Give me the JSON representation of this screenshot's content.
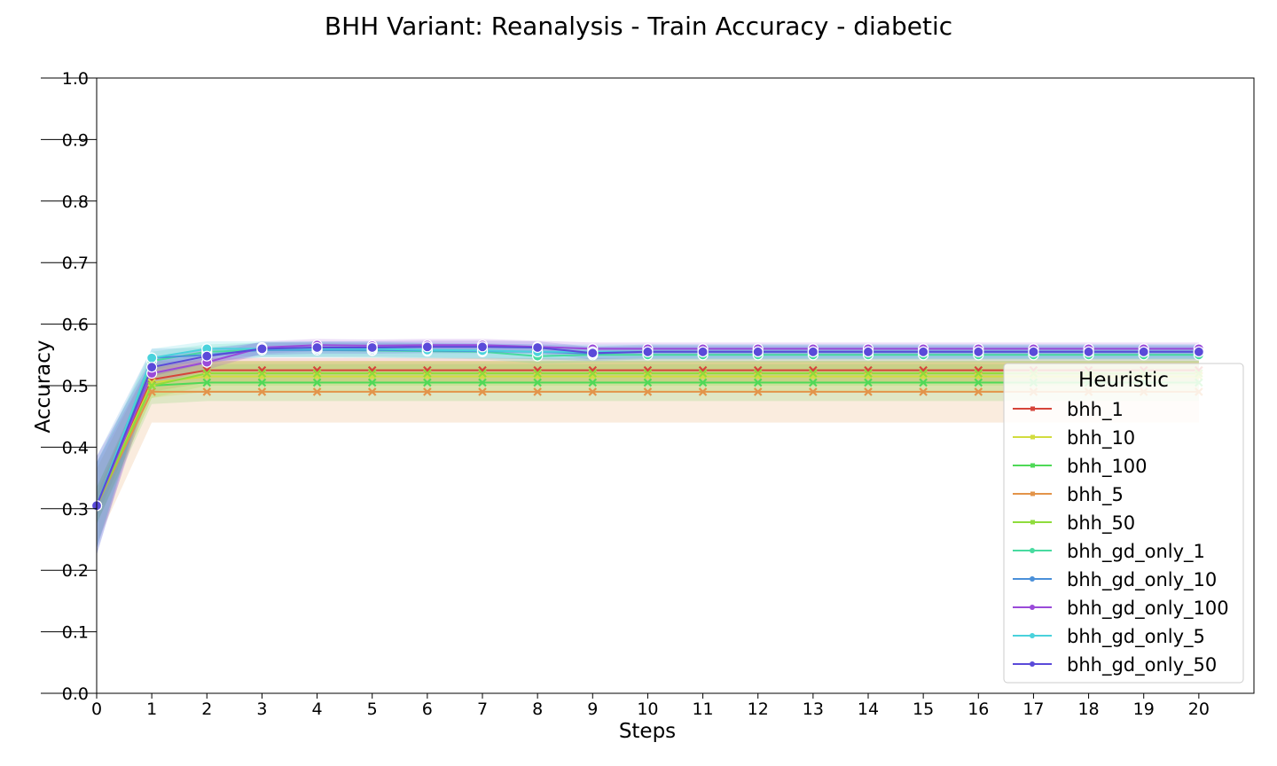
{
  "chart_data": {
    "type": "line",
    "title": "BHH Variant: Reanalysis - Train Accuracy - diabetic",
    "xlabel": "Steps",
    "ylabel": "Accuracy",
    "xlim": [
      0,
      21
    ],
    "ylim": [
      0.0,
      1.0
    ],
    "x_ticks": [
      0,
      1,
      2,
      3,
      4,
      5,
      6,
      7,
      8,
      9,
      10,
      11,
      12,
      13,
      14,
      15,
      16,
      17,
      18,
      19,
      20
    ],
    "y_ticks": [
      "0.0",
      "0.1",
      "0.2",
      "0.3",
      "0.4",
      "0.5",
      "0.6",
      "0.7",
      "0.8",
      "0.9",
      "1.0"
    ],
    "grid": false,
    "legend_title": "Heuristic",
    "legend_position": "center-right",
    "x": [
      0,
      1,
      2,
      3,
      4,
      5,
      6,
      7,
      8,
      9,
      10,
      11,
      12,
      13,
      14,
      15,
      16,
      17,
      18,
      19,
      20
    ],
    "series": [
      {
        "name": "bhh_1",
        "color": "#d6443a",
        "marker": "x",
        "values": [
          0.305,
          0.51,
          0.525,
          0.525,
          0.525,
          0.525,
          0.525,
          0.525,
          0.525,
          0.525,
          0.525,
          0.525,
          0.525,
          0.525,
          0.525,
          0.525,
          0.525,
          0.525,
          0.525,
          0.525,
          0.525
        ],
        "band": [
          0.02,
          0.02,
          0.02,
          0.02,
          0.02,
          0.02,
          0.02,
          0.02,
          0.02,
          0.02,
          0.02,
          0.02,
          0.02,
          0.02,
          0.02,
          0.02,
          0.02,
          0.02,
          0.02,
          0.02,
          0.02
        ]
      },
      {
        "name": "bhh_10",
        "color": "#d2dc3f",
        "marker": "x",
        "values": [
          0.305,
          0.505,
          0.515,
          0.515,
          0.515,
          0.515,
          0.515,
          0.515,
          0.515,
          0.515,
          0.515,
          0.515,
          0.515,
          0.515,
          0.515,
          0.515,
          0.515,
          0.515,
          0.515,
          0.515,
          0.515
        ],
        "band": [
          0.03,
          0.025,
          0.025,
          0.025,
          0.025,
          0.025,
          0.025,
          0.025,
          0.025,
          0.025,
          0.025,
          0.025,
          0.025,
          0.025,
          0.025,
          0.025,
          0.025,
          0.025,
          0.025,
          0.025,
          0.025
        ]
      },
      {
        "name": "bhh_100",
        "color": "#4fd957",
        "marker": "x",
        "values": [
          0.305,
          0.5,
          0.505,
          0.505,
          0.505,
          0.505,
          0.505,
          0.505,
          0.505,
          0.505,
          0.505,
          0.505,
          0.505,
          0.505,
          0.505,
          0.505,
          0.505,
          0.505,
          0.505,
          0.505,
          0.505
        ],
        "band": [
          0.03,
          0.03,
          0.03,
          0.03,
          0.03,
          0.03,
          0.03,
          0.03,
          0.03,
          0.03,
          0.03,
          0.03,
          0.03,
          0.03,
          0.03,
          0.03,
          0.03,
          0.03,
          0.03,
          0.03,
          0.03
        ]
      },
      {
        "name": "bhh_5",
        "color": "#e3944a",
        "marker": "x",
        "values": [
          0.305,
          0.49,
          0.49,
          0.49,
          0.49,
          0.49,
          0.49,
          0.49,
          0.49,
          0.49,
          0.49,
          0.49,
          0.49,
          0.49,
          0.49,
          0.49,
          0.49,
          0.49,
          0.49,
          0.49,
          0.49
        ],
        "band": [
          0.06,
          0.05,
          0.05,
          0.05,
          0.05,
          0.05,
          0.05,
          0.05,
          0.05,
          0.05,
          0.05,
          0.05,
          0.05,
          0.05,
          0.05,
          0.05,
          0.05,
          0.05,
          0.05,
          0.05,
          0.05
        ]
      },
      {
        "name": "bhh_50",
        "color": "#8fdc3c",
        "marker": "x",
        "values": [
          0.305,
          0.5,
          0.52,
          0.52,
          0.52,
          0.52,
          0.52,
          0.52,
          0.52,
          0.52,
          0.52,
          0.52,
          0.52,
          0.52,
          0.52,
          0.52,
          0.52,
          0.52,
          0.52,
          0.52,
          0.52
        ],
        "band": [
          0.03,
          0.02,
          0.02,
          0.02,
          0.02,
          0.02,
          0.02,
          0.02,
          0.02,
          0.02,
          0.02,
          0.02,
          0.02,
          0.02,
          0.02,
          0.02,
          0.02,
          0.02,
          0.02,
          0.02,
          0.02
        ]
      },
      {
        "name": "bhh_gd_only_1",
        "color": "#48dba0",
        "marker": "o",
        "values": [
          0.305,
          0.54,
          0.555,
          0.558,
          0.558,
          0.557,
          0.556,
          0.555,
          0.548,
          0.55,
          0.55,
          0.55,
          0.55,
          0.55,
          0.55,
          0.55,
          0.55,
          0.55,
          0.55,
          0.55,
          0.55
        ],
        "band": [
          0.07,
          0.015,
          0.012,
          0.012,
          0.012,
          0.012,
          0.012,
          0.012,
          0.012,
          0.012,
          0.012,
          0.012,
          0.012,
          0.012,
          0.012,
          0.012,
          0.012,
          0.012,
          0.012,
          0.012,
          0.012
        ]
      },
      {
        "name": "bhh_gd_only_10",
        "color": "#4a90d9",
        "marker": "o",
        "values": [
          0.305,
          0.545,
          0.55,
          0.558,
          0.558,
          0.558,
          0.557,
          0.556,
          0.555,
          0.552,
          0.555,
          0.555,
          0.555,
          0.555,
          0.555,
          0.555,
          0.555,
          0.555,
          0.555,
          0.555,
          0.555
        ],
        "band": [
          0.08,
          0.015,
          0.012,
          0.012,
          0.012,
          0.012,
          0.012,
          0.012,
          0.012,
          0.012,
          0.012,
          0.012,
          0.012,
          0.012,
          0.012,
          0.012,
          0.012,
          0.012,
          0.012,
          0.012,
          0.012
        ]
      },
      {
        "name": "bhh_gd_only_100",
        "color": "#9a4ad9",
        "marker": "o",
        "values": [
          0.305,
          0.52,
          0.538,
          0.562,
          0.566,
          0.565,
          0.566,
          0.566,
          0.563,
          0.56,
          0.56,
          0.56,
          0.56,
          0.56,
          0.56,
          0.56,
          0.56,
          0.56,
          0.56,
          0.56,
          0.56
        ],
        "band": [
          0.07,
          0.02,
          0.012,
          0.01,
          0.01,
          0.01,
          0.01,
          0.01,
          0.01,
          0.01,
          0.01,
          0.01,
          0.01,
          0.01,
          0.01,
          0.01,
          0.01,
          0.01,
          0.01,
          0.01,
          0.01
        ]
      },
      {
        "name": "bhh_gd_only_5",
        "color": "#4ad2dc",
        "marker": "o",
        "values": [
          0.305,
          0.545,
          0.56,
          0.56,
          0.56,
          0.56,
          0.558,
          0.557,
          0.555,
          0.555,
          0.555,
          0.555,
          0.555,
          0.555,
          0.555,
          0.555,
          0.555,
          0.555,
          0.555,
          0.555,
          0.555
        ],
        "band": [
          0.07,
          0.015,
          0.012,
          0.012,
          0.012,
          0.012,
          0.012,
          0.012,
          0.012,
          0.012,
          0.012,
          0.012,
          0.012,
          0.012,
          0.012,
          0.012,
          0.012,
          0.012,
          0.012,
          0.012,
          0.012
        ]
      },
      {
        "name": "bhh_gd_only_50",
        "color": "#5a4ad9",
        "marker": "o",
        "values": [
          0.305,
          0.53,
          0.548,
          0.56,
          0.562,
          0.562,
          0.563,
          0.563,
          0.562,
          0.553,
          0.555,
          0.555,
          0.555,
          0.555,
          0.555,
          0.555,
          0.555,
          0.555,
          0.555,
          0.555,
          0.555
        ],
        "band": [
          0.08,
          0.015,
          0.012,
          0.01,
          0.01,
          0.01,
          0.01,
          0.01,
          0.01,
          0.01,
          0.01,
          0.01,
          0.01,
          0.01,
          0.01,
          0.01,
          0.01,
          0.01,
          0.01,
          0.01,
          0.01
        ]
      }
    ]
  }
}
